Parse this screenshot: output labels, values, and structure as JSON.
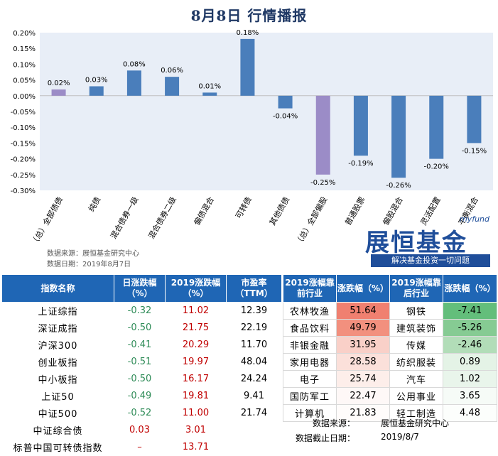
{
  "title": "8月8日  行情播报",
  "chart_data": {
    "type": "bar",
    "categories": [
      "（总）全部债债",
      "纯债",
      "混合债券一级",
      "混合债券二级",
      "偏债混合",
      "可转债",
      "其他债债",
      "（总）全部偏股",
      "普通股票",
      "偏股混合",
      "灵活配置",
      "平衡混合"
    ],
    "values": [
      0.02,
      0.03,
      0.08,
      0.06,
      0.01,
      0.18,
      -0.04,
      -0.25,
      -0.19,
      -0.26,
      -0.2,
      -0.15
    ],
    "data_labels": [
      "0.02%",
      "0.03%",
      "0.08%",
      "0.06%",
      "0.01%",
      "0.18%",
      "-0.04%",
      "-0.25%",
      "-0.19%",
      "-0.26%",
      "-0.20%",
      "-0.15%"
    ],
    "highlighted": [
      0,
      7
    ],
    "bar_color": "#4a7ebb",
    "highlight_color": "#9b8cc7",
    "ylim": [
      -0.3,
      0.2
    ],
    "yticks": [
      0.2,
      0.15,
      0.1,
      0.05,
      0.0,
      -0.05,
      -0.1,
      -0.15,
      -0.2,
      -0.25,
      -0.3
    ],
    "ytick_labels": [
      "0.20%",
      "0.15%",
      "0.10%",
      "0.05%",
      "0.00%",
      "-0.05%",
      "-0.10%",
      "-0.15%",
      "-0.20%",
      "-0.25%",
      "-0.30%"
    ],
    "plot_background": "#e8eef7"
  },
  "source_note": {
    "line1": "数据来源：展恒基金研究中心",
    "line2": "数据日期：2019年8月7日"
  },
  "brand": {
    "myfund": "myfund",
    "logo": "展恒基金",
    "slogan": "解决基金投资一切问题"
  },
  "index_table": {
    "headers": [
      "指数名称",
      "日涨跌幅（%）",
      "2019涨跌幅（%）",
      "市盈率（TTM）"
    ],
    "rows": [
      {
        "name": "上证综指",
        "day": "-0.32",
        "ytd": "11.02",
        "pe": "12.39"
      },
      {
        "name": "深证成指",
        "day": "-0.50",
        "ytd": "21.75",
        "pe": "22.19"
      },
      {
        "name": "沪深300",
        "day": "-0.41",
        "ytd": "20.29",
        "pe": "11.70"
      },
      {
        "name": "创业板指",
        "day": "-0.51",
        "ytd": "19.97",
        "pe": "48.04"
      },
      {
        "name": "中小板指",
        "day": "-0.50",
        "ytd": "16.17",
        "pe": "24.24"
      },
      {
        "name": "上证50",
        "day": "-0.49",
        "ytd": "19.81",
        "pe": "9.41"
      },
      {
        "name": "中证500",
        "day": "-0.52",
        "ytd": "11.00",
        "pe": "21.74"
      },
      {
        "name": "中证综合债",
        "day": "0.03",
        "ytd": "3.01",
        "pe": ""
      },
      {
        "name": "标普中国可转债指数",
        "day": "–",
        "ytd": "13.71",
        "pe": ""
      }
    ]
  },
  "industry_table": {
    "headers": [
      "2019涨幅靠前行业",
      "涨跌幅（%）",
      "2019涨幅靠后行业",
      "涨跌幅（%）"
    ],
    "rows": [
      {
        "top": "农林牧渔",
        "top_chg": "51.64",
        "bottom": "钢铁",
        "bottom_chg": "-7.41",
        "top_bg": "#f08070",
        "bottom_bg": "#63be7b"
      },
      {
        "top": "食品饮料",
        "top_chg": "49.79",
        "bottom": "建筑装饰",
        "bottom_chg": "-5.26",
        "top_bg": "#f2907e",
        "bottom_bg": "#86cb93"
      },
      {
        "top": "非银金融",
        "top_chg": "31.95",
        "bottom": "传媒",
        "bottom_chg": "-2.46",
        "top_bg": "#f9d0c8",
        "bottom_bg": "#b2ddb8"
      },
      {
        "top": "家用电器",
        "top_chg": "28.58",
        "bottom": "纺织服装",
        "bottom_chg": "0.89",
        "top_bg": "#fbe0da",
        "bottom_bg": "#e4f3e6"
      },
      {
        "top": "电子",
        "top_chg": "25.74",
        "bottom": "汽车",
        "bottom_chg": "1.02",
        "top_bg": "#fdeeea",
        "bottom_bg": "#e9f5eb"
      },
      {
        "top": "国防军工",
        "top_chg": "22.47",
        "bottom": "公用事业",
        "bottom_chg": "3.65",
        "top_bg": "#fef8f7",
        "bottom_bg": "#f6fbf7"
      },
      {
        "top": "计算机",
        "top_chg": "21.83",
        "bottom": "轻工制造",
        "bottom_chg": "4.48",
        "top_bg": "#fffcfb",
        "bottom_bg": "#fcfefc"
      }
    ]
  },
  "footer": {
    "source_label": "数据来源：",
    "source_value": "展恒基金研究中心",
    "date_label": "数据截止日期：",
    "date_value": "2019/8/7"
  }
}
